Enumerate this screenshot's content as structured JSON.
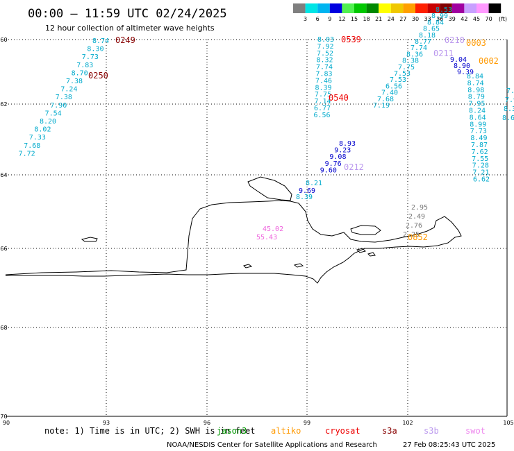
{
  "title": "00:00 — 11:59 UTC 02/24/2025",
  "subtitle": "12 hour collection of altimeter wave heights",
  "legend": {
    "labels": [
      "3",
      "6",
      "9",
      "12",
      "15",
      "18",
      "21",
      "24",
      "27",
      "30",
      "33",
      "36",
      "39",
      "42",
      "45",
      "70"
    ],
    "unit": "(ft)",
    "colors": [
      "#7f7f7f",
      "#00e5e5",
      "#00b4f0",
      "#0000e0",
      "#50f050",
      "#00c800",
      "#008800",
      "#ffff00",
      "#f0c800",
      "#ffa000",
      "#ff2000",
      "#c80000",
      "#800000",
      "#a000a0",
      "#c8a0ff",
      "#ff99ff",
      "#000000"
    ]
  },
  "lat_labels": [
    "-60",
    "-62",
    "-64",
    "-66",
    "-68",
    "-70"
  ],
  "lon_labels": [
    "90",
    "93",
    "96",
    "99",
    "102",
    "105"
  ],
  "tracks": [
    {
      "color": "#00aacc",
      "values": [
        "8.74",
        "8.30",
        "7.73",
        "7.83",
        "8.70",
        "7.38",
        "7.24",
        "7.38",
        "7.90",
        "7.54",
        "8.20",
        "8.02",
        "7.33",
        "7.68",
        "7.72"
      ]
    },
    {
      "color": "#00aacc",
      "values": [
        "8.03",
        "7.92",
        "7.52",
        "8.32",
        "7.74",
        "7.83",
        "7.46",
        "8.39",
        "7.75",
        "7.14",
        "6.77",
        "6.56"
      ]
    },
    {
      "color": "#00aacc",
      "values": [
        "7.19",
        "7.68",
        "7.40",
        "6.56",
        "7.53",
        "7.53",
        "7.75",
        "8.38",
        "8.36",
        "7.74",
        "8.77",
        "8.18",
        "8.65",
        "8.84",
        "8.99",
        "8.53"
      ]
    },
    {
      "color": "#0000cc",
      "values": [
        "8.93",
        "9.23",
        "9.08",
        "9.76",
        "9.60"
      ]
    },
    {
      "color": "#0000cc",
      "values": [
        "9.69"
      ]
    },
    {
      "color": "#00aacc",
      "values": [
        "8.21",
        "8.39"
      ]
    },
    {
      "color": "#0000cc",
      "values": [
        "9.04",
        "8.90",
        "9.39"
      ]
    },
    {
      "color": "#00aacc",
      "values": [
        "8.84",
        "8.74",
        "8.98",
        "8.79",
        "7.95",
        "8.24",
        "8.64",
        "8.99",
        "7.73",
        "8.49",
        "7.87",
        "7.62",
        "7.55",
        "7.28",
        "7.21",
        "6.62"
      ]
    },
    {
      "color": "#00aacc",
      "values": [
        "7.4",
        "7.98",
        "8.32",
        "8.6"
      ]
    },
    {
      "color": "#777777",
      "values": [
        "2.95",
        "2.49",
        "2.76",
        "2.25"
      ]
    },
    {
      "color": "#ee66dd",
      "values": [
        "45.02",
        "55.43"
      ]
    }
  ],
  "time_labels": [
    {
      "text": "0249",
      "color": "#880000"
    },
    {
      "text": "0250",
      "color": "#880000"
    },
    {
      "text": "0539",
      "color": "#ee0000"
    },
    {
      "text": "0540",
      "color": "#ee0000"
    },
    {
      "text": "0212",
      "color": "#bb99ee"
    },
    {
      "text": "0210",
      "color": "#bb99ee"
    },
    {
      "text": "0211",
      "color": "#bb99ee"
    },
    {
      "text": "0003",
      "color": "#ff9900"
    },
    {
      "text": "0002",
      "color": "#ff9900"
    },
    {
      "text": "0852",
      "color": "#ff9900"
    }
  ],
  "note": "note: 1) Time is in UTC; 2) SWH is in feet",
  "satellites": [
    {
      "name": "jason3",
      "color": "#009900"
    },
    {
      "name": "altiko",
      "color": "#ff9900"
    },
    {
      "name": "cryosat",
      "color": "#ee0000"
    },
    {
      "name": "s3a",
      "color": "#880000"
    },
    {
      "name": "s3b",
      "color": "#bb99ee"
    },
    {
      "name": "swot",
      "color": "#ee88ee"
    }
  ],
  "credit": "NOAA/NESDIS Center for Satellite Applications and Research",
  "timestamp": "27 Feb 08:25:43 UTC 2025"
}
